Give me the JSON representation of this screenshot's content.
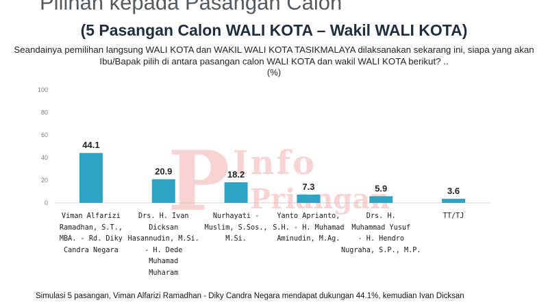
{
  "header": {
    "title_top": "Pilihan kepada Pasangan Calon",
    "title_main": "(5 Pasangan Calon WALI KOTA – Wakil WALI KOTA)",
    "question": "Seandainya pemilihan langsung WALI KOTA dan WAKIL WALI KOTA TASIKMALAYA dilaksanakan sekarang ini, siapa yang akan Ibu/Bapak pilih di antara pasangan calon WALI KOTA dan wakil WALI KOTA berikut? ..",
    "unit": "(%)"
  },
  "watermark": {
    "line1": "Info",
    "line2": "Priangan",
    "mark": "P"
  },
  "footer": {
    "text": "Simulasi 5 pasangan, Viman Alfarizi Ramadhan - Diky Candra Negara mendapat dukungan 44.1%, kemudian Ivan Dicksan"
  },
  "chart_data": {
    "type": "bar",
    "categories": [
      "Viman Alfarizi Ramadhan, S.T., MBA. - Rd. Diky Candra Negara",
      "Drs. H. Ivan Dicksan Hasannudin, M.Si. - H. Dede Muhamad Muharam",
      "Nurhayati - Muslim, S.Sos., M.Si.",
      "Yanto Aprianto, S.H. - H. Muhamad Aminudin, M.Ag.",
      "Drs. H. Muhammad Yusuf - H. Hendro Nugraha, S.P., M.P.",
      "TT/TJ"
    ],
    "category_lines": [
      [
        "Viman Alfarizi",
        "Ramadhan, S.T.,",
        "MBA. - Rd. Diky",
        "Candra Negara"
      ],
      [
        "Drs. H. Ivan",
        "Dicksan",
        "Hasannudin, M.Si.",
        "- H. Dede",
        "Muhamad",
        "Muharam"
      ],
      [
        "Nurhayati -",
        "Muslim, S.Sos.,",
        "M.Si."
      ],
      [
        "Yanto Aprianto,",
        "S.H. - H. Muhamad",
        "Aminudin, M.Ag."
      ],
      [
        "Drs. H.",
        "Muhammad Yusuf",
        "- H. Hendro",
        "Nugraha, S.P., M.P."
      ],
      [
        "TT/TJ"
      ]
    ],
    "values": [
      44.1,
      20.9,
      18.2,
      7.3,
      5.9,
      3.6
    ],
    "value_labels": [
      "44.1",
      "20.9",
      "18.2",
      "7.3",
      "5.9",
      "3.6"
    ],
    "ylim": [
      0,
      100
    ],
    "yticks": [
      0,
      20,
      40,
      60,
      80,
      100
    ],
    "ytick_labels": [
      "0",
      "20",
      "40",
      "60",
      "80",
      "100"
    ],
    "grid": false,
    "legend": "none",
    "bar_color": "#2ea3c4",
    "axis_color": "#cfcfcf"
  }
}
